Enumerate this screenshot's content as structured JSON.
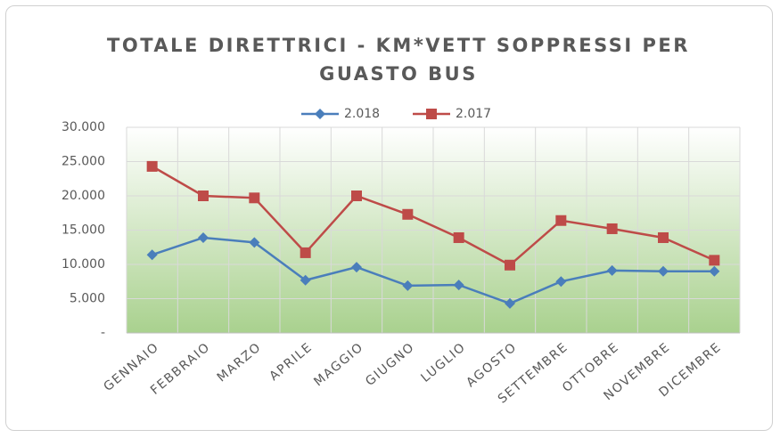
{
  "chart_data": {
    "type": "line",
    "title": "TOTALE DIRETTRICI - KM*VETT SOPPRESSI PER GUASTO BUS",
    "categories": [
      "GENNAIO",
      "FEBBRAIO",
      "MARZO",
      "APRILE",
      "MAGGIO",
      "GIUGNO",
      "LUGLIO",
      "AGOSTO",
      "SETTEMBRE",
      "OTTOBRE",
      "NOVEMBRE",
      "DICEMBRE"
    ],
    "series": [
      {
        "name": "2.018",
        "color": "#4a7ebb",
        "marker": "diamond",
        "values": [
          11400,
          13900,
          13200,
          7700,
          9600,
          6900,
          7000,
          4300,
          7500,
          9100,
          9000,
          9000
        ]
      },
      {
        "name": "2.017",
        "color": "#be4b48",
        "marker": "square",
        "values": [
          24300,
          20000,
          19700,
          11700,
          20000,
          17300,
          13900,
          9900,
          16400,
          15200,
          13900,
          10600
        ]
      }
    ],
    "ylim": [
      0,
      30000
    ],
    "yticks": [
      {
        "value": 0,
        "label": "-"
      },
      {
        "value": 5000,
        "label": "5.000"
      },
      {
        "value": 10000,
        "label": "10.000"
      },
      {
        "value": 15000,
        "label": "15.000"
      },
      {
        "value": 20000,
        "label": "20.000"
      },
      {
        "value": 25000,
        "label": "25.000"
      },
      {
        "value": 30000,
        "label": "30.000"
      }
    ],
    "grid": true,
    "legend": "top"
  }
}
